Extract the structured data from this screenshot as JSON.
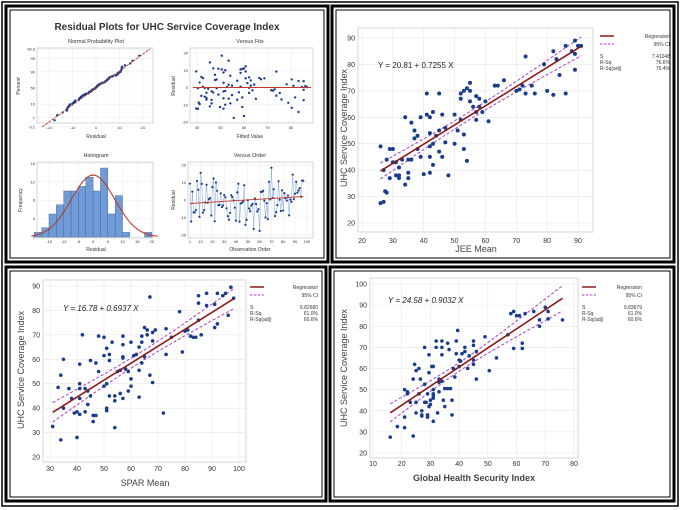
{
  "colors": {
    "points": "#1a3c8c",
    "regression": "#8b1a1a",
    "ci": "#b23cc8",
    "hist_bar": "#6f9bd6",
    "fit_line": "#c0392b",
    "grid": "#e6e6e6"
  },
  "residual_plots": {
    "title": "Residual Plots for UHC Service Coverage Index",
    "normal_probability": {
      "title": "Normal Probability Plot",
      "xlabel": "Residual",
      "ylabel": "Percent",
      "xticks": [
        -20,
        -10,
        0,
        10,
        20
      ],
      "yticks": [
        "0.1",
        "1",
        "10",
        "50",
        "90",
        "99",
        "99.9"
      ]
    },
    "versus_fits": {
      "title": "Versus Fits",
      "xlabel": "Fitted Value",
      "ylabel": "Residual",
      "xticks": [
        40,
        50,
        60,
        70,
        80
      ],
      "yticks": [
        -20,
        -10,
        0,
        10,
        20
      ]
    },
    "histogram": {
      "title": "Histogram",
      "xlabel": "Residual",
      "ylabel": "Frequency",
      "xticks": [
        -15,
        -10,
        -5,
        0,
        5,
        10,
        15,
        20
      ],
      "yticks": [
        0,
        4,
        8,
        12,
        16
      ],
      "bin_start": -20,
      "bin_width": 2.5,
      "frequencies": [
        1,
        2,
        5,
        7,
        10,
        10,
        11,
        13,
        10,
        15,
        5,
        9,
        1,
        0,
        0,
        1
      ]
    },
    "versus_order": {
      "title": "Versus Order",
      "xlabel": "Observation Order",
      "ylabel": "Residual",
      "xticks": [
        1,
        10,
        20,
        30,
        40,
        50,
        60,
        70,
        80,
        90,
        100
      ],
      "yticks": [
        -20,
        -10,
        0,
        10,
        20
      ]
    }
  },
  "chart_data": [
    {
      "type": "scatter",
      "xlabel": "JEE Mean",
      "ylabel": "UHC Service Coverage Index",
      "xlim": [
        20,
        90
      ],
      "ylim": [
        20,
        90
      ],
      "xticks": [
        20,
        30,
        40,
        50,
        60,
        70,
        80,
        90
      ],
      "yticks": [
        20,
        30,
        40,
        50,
        60,
        70,
        80,
        90
      ],
      "equation": "Y = 20.81 + 0.7255 X",
      "intercept": 20.81,
      "slope": 0.7255,
      "legend": {
        "regression": "Regression",
        "ci": "95% CI",
        "stats": [
          [
            "S",
            "7.41048"
          ],
          [
            "R-Sq",
            "76.6%"
          ],
          [
            "R-Sq(adj)",
            "76.4%"
          ]
        ]
      },
      "points": [
        [
          26,
          49
        ],
        [
          26,
          27.5
        ],
        [
          27,
          28
        ],
        [
          27,
          40
        ],
        [
          27.5,
          32
        ],
        [
          28,
          31.5
        ],
        [
          28,
          44
        ],
        [
          29,
          37
        ],
        [
          29,
          48
        ],
        [
          30,
          48
        ],
        [
          30,
          43
        ],
        [
          31,
          43
        ],
        [
          31,
          38
        ],
        [
          32,
          38
        ],
        [
          32,
          37
        ],
        [
          32,
          41
        ],
        [
          33,
          44
        ],
        [
          34,
          34.5
        ],
        [
          34,
          60
        ],
        [
          35,
          39
        ],
        [
          35,
          37
        ],
        [
          35,
          44
        ],
        [
          36,
          44
        ],
        [
          36,
          58
        ],
        [
          37,
          55
        ],
        [
          37,
          52
        ],
        [
          38,
          53
        ],
        [
          38,
          48
        ],
        [
          39,
          60
        ],
        [
          39,
          45
        ],
        [
          40,
          38.5
        ],
        [
          41,
          69
        ],
        [
          41,
          61
        ],
        [
          42,
          60
        ],
        [
          42,
          54
        ],
        [
          42,
          49
        ],
        [
          42,
          45
        ],
        [
          42,
          39
        ],
        [
          43,
          62
        ],
        [
          43,
          50
        ],
        [
          43,
          42
        ],
        [
          44,
          53
        ],
        [
          45,
          69
        ],
        [
          45,
          55
        ],
        [
          45,
          47
        ],
        [
          46,
          45
        ],
        [
          46,
          61
        ],
        [
          47,
          56
        ],
        [
          47,
          50.5
        ],
        [
          48,
          38
        ],
        [
          50,
          61
        ],
        [
          50,
          50
        ],
        [
          51,
          55
        ],
        [
          52,
          67
        ],
        [
          52,
          69
        ],
        [
          52,
          59
        ],
        [
          53,
          53.5
        ],
        [
          53,
          48
        ],
        [
          54,
          43.5
        ],
        [
          53,
          70
        ],
        [
          54,
          71
        ],
        [
          55,
          73
        ],
        [
          55,
          70
        ],
        [
          55,
          66
        ],
        [
          56,
          64
        ],
        [
          57,
          68
        ],
        [
          57,
          59
        ],
        [
          57,
          62
        ],
        [
          58,
          64
        ],
        [
          58,
          67
        ],
        [
          59,
          62
        ],
        [
          60,
          66
        ],
        [
          61,
          58.5
        ],
        [
          63,
          72
        ],
        [
          64,
          72
        ],
        [
          66,
          74
        ],
        [
          70,
          70
        ],
        [
          71,
          70.5
        ],
        [
          72,
          72
        ],
        [
          73,
          83
        ],
        [
          73,
          69
        ],
        [
          75,
          72
        ],
        [
          76,
          69
        ],
        [
          79,
          80
        ],
        [
          80,
          70
        ],
        [
          82,
          68.5
        ],
        [
          82,
          85
        ],
        [
          83,
          82
        ],
        [
          84,
          76
        ],
        [
          86,
          87
        ],
        [
          86,
          69
        ],
        [
          88,
          85
        ],
        [
          89,
          89
        ],
        [
          89,
          84
        ],
        [
          89,
          78
        ],
        [
          90,
          87
        ],
        [
          91,
          87
        ]
      ]
    },
    {
      "type": "scatter",
      "xlabel": "SPAR Mean",
      "ylabel": "UHC Service Coverage Index",
      "xlim": [
        30,
        100
      ],
      "ylim": [
        20,
        90
      ],
      "xticks": [
        30,
        40,
        50,
        60,
        70,
        80,
        90,
        100
      ],
      "yticks": [
        20,
        30,
        40,
        50,
        60,
        70,
        80,
        90
      ],
      "equation": "Y = 16.78 + 0.6937 X",
      "intercept": 16.78,
      "slope": 0.6937,
      "legend": {
        "regression": "Regression",
        "ci": "95% CI",
        "stats": [
          [
            "S",
            "9.82680"
          ],
          [
            "R-Sq",
            "61.0%"
          ],
          [
            "R-Sq(adj)",
            "60.6%"
          ]
        ]
      },
      "points": [
        [
          31,
          32.5
        ],
        [
          33,
          48.5
        ],
        [
          34,
          27
        ],
        [
          34,
          53.5
        ],
        [
          35,
          40
        ],
        [
          35,
          60
        ],
        [
          37,
          48
        ],
        [
          38,
          44
        ],
        [
          39,
          38
        ],
        [
          40,
          38.5
        ],
        [
          40,
          28
        ],
        [
          41,
          58
        ],
        [
          41,
          50
        ],
        [
          41,
          48
        ],
        [
          41,
          44
        ],
        [
          41,
          37.5
        ],
        [
          42,
          70
        ],
        [
          43,
          38.5
        ],
        [
          43,
          48
        ],
        [
          44,
          47
        ],
        [
          44,
          41.5
        ],
        [
          45,
          59.5
        ],
        [
          45,
          45
        ],
        [
          46,
          37
        ],
        [
          46,
          34.5
        ],
        [
          47,
          58.5
        ],
        [
          47,
          37
        ],
        [
          48,
          69.5
        ],
        [
          48,
          55
        ],
        [
          50,
          61.5
        ],
        [
          50,
          49
        ],
        [
          50,
          69
        ],
        [
          51,
          64.5
        ],
        [
          51,
          50
        ],
        [
          51,
          40
        ],
        [
          51,
          39
        ],
        [
          52,
          62
        ],
        [
          52,
          59.5
        ],
        [
          52,
          45
        ],
        [
          53,
          67
        ],
        [
          54,
          45
        ],
        [
          54,
          43
        ],
        [
          54,
          32
        ],
        [
          55,
          55
        ],
        [
          56,
          46
        ],
        [
          56,
          55.5
        ],
        [
          57,
          69.5
        ],
        [
          57,
          66
        ],
        [
          57,
          61
        ],
        [
          57,
          60.5
        ],
        [
          57,
          44
        ],
        [
          58,
          56
        ],
        [
          59,
          47
        ],
        [
          59,
          55
        ],
        [
          60,
          67
        ],
        [
          60,
          52
        ],
        [
          60,
          49
        ],
        [
          61,
          61.5
        ],
        [
          62,
          62
        ],
        [
          63,
          44.5
        ],
        [
          63,
          55.5
        ],
        [
          63,
          65
        ],
        [
          64,
          69.5
        ],
        [
          64,
          67
        ],
        [
          64,
          58.5
        ],
        [
          65,
          73
        ],
        [
          65,
          61
        ],
        [
          66,
          72
        ],
        [
          66,
          70
        ],
        [
          67,
          53.5
        ],
        [
          67,
          85.5
        ],
        [
          68,
          71
        ],
        [
          68,
          67.5
        ],
        [
          68,
          50.5
        ],
        [
          69,
          72
        ],
        [
          72,
          38
        ],
        [
          73,
          72.5
        ],
        [
          73,
          62
        ],
        [
          75,
          69
        ],
        [
          78,
          79.5
        ],
        [
          79,
          63
        ],
        [
          80,
          71.5
        ],
        [
          81,
          72
        ],
        [
          82,
          69.5
        ],
        [
          83,
          69
        ],
        [
          84,
          69
        ],
        [
          85,
          86
        ],
        [
          85,
          83
        ],
        [
          85,
          76
        ],
        [
          86,
          70
        ],
        [
          88,
          87
        ],
        [
          88,
          82
        ],
        [
          91,
          82.5
        ],
        [
          91,
          73
        ],
        [
          92,
          87
        ],
        [
          92,
          74.5
        ],
        [
          94,
          86
        ],
        [
          95,
          87
        ],
        [
          96,
          78
        ],
        [
          97,
          89.5
        ],
        [
          98,
          85
        ]
      ]
    },
    {
      "type": "scatter",
      "xlabel": "Global Health Security Index",
      "ylabel": "UHC Service Coverage Index",
      "xlim": [
        10,
        80
      ],
      "ylim": [
        20,
        100
      ],
      "xticks": [
        10,
        20,
        30,
        40,
        50,
        60,
        70,
        80
      ],
      "yticks": [
        20,
        30,
        40,
        50,
        60,
        70,
        80,
        90,
        100
      ],
      "equation": "Y = 24.58 + 0.9032 X",
      "intercept": 24.58,
      "slope": 0.9032,
      "legend": {
        "regression": "Regression",
        "ci": "95% CI",
        "stats": [
          [
            "S",
            "9.83679"
          ],
          [
            "R-Sq",
            "61.0%"
          ],
          [
            "R-Sq(adj)",
            "60.6%"
          ]
        ]
      },
      "points": [
        [
          16,
          27.5
        ],
        [
          18.5,
          32.5
        ],
        [
          21,
          32
        ],
        [
          21,
          37
        ],
        [
          21,
          50
        ],
        [
          22,
          48
        ],
        [
          22,
          49
        ],
        [
          23,
          44
        ],
        [
          24,
          28
        ],
        [
          24,
          55
        ],
        [
          24.5,
          62
        ],
        [
          25,
          59
        ],
        [
          25,
          44
        ],
        [
          25,
          39
        ],
        [
          26,
          48
        ],
        [
          26,
          60
        ],
        [
          26.5,
          55
        ],
        [
          27,
          40
        ],
        [
          27,
          38
        ],
        [
          27,
          37.5
        ],
        [
          28,
          70
        ],
        [
          28,
          52.5
        ],
        [
          28,
          44
        ],
        [
          28.5,
          44
        ],
        [
          29,
          48
        ],
        [
          29,
          38
        ],
        [
          29,
          37
        ],
        [
          29.5,
          42
        ],
        [
          29.5,
          58
        ],
        [
          29.5,
          66.5
        ],
        [
          30,
          45
        ],
        [
          30,
          43
        ],
        [
          30.5,
          61
        ],
        [
          31,
          61
        ],
        [
          31,
          50
        ],
        [
          31,
          48
        ],
        [
          31,
          47
        ],
        [
          31,
          46
        ],
        [
          31,
          35
        ],
        [
          32,
          70
        ],
        [
          32,
          73
        ],
        [
          32.5,
          39
        ],
        [
          33,
          55
        ],
        [
          33,
          49
        ],
        [
          33,
          53.5
        ],
        [
          34,
          73
        ],
        [
          34,
          70
        ],
        [
          34,
          66.5
        ],
        [
          34,
          54
        ],
        [
          34.5,
          45
        ],
        [
          35,
          50.5
        ],
        [
          35,
          42
        ],
        [
          36,
          50.5
        ],
        [
          36,
          72
        ],
        [
          36.5,
          69
        ],
        [
          37,
          50.5
        ],
        [
          37.5,
          38
        ],
        [
          37.5,
          45
        ],
        [
          38,
          60
        ],
        [
          38.5,
          56
        ],
        [
          39,
          73
        ],
        [
          39,
          67
        ],
        [
          39.5,
          78
        ],
        [
          40,
          64
        ],
        [
          40,
          61
        ],
        [
          40.5,
          63.5
        ],
        [
          41,
          67
        ],
        [
          42,
          70
        ],
        [
          42,
          68
        ],
        [
          43,
          60
        ],
        [
          43.5,
          66
        ],
        [
          45,
          73
        ],
        [
          45,
          71
        ],
        [
          45,
          62
        ],
        [
          45,
          64
        ],
        [
          46,
          55
        ],
        [
          46,
          68
        ],
        [
          49,
          75
        ],
        [
          50.5,
          59
        ],
        [
          53,
          65
        ],
        [
          57,
          76
        ],
        [
          58,
          86
        ],
        [
          59,
          87
        ],
        [
          59,
          69.5
        ],
        [
          60,
          85
        ],
        [
          61,
          85
        ],
        [
          62,
          72
        ],
        [
          62,
          69.5
        ],
        [
          63,
          86
        ],
        [
          66,
          87
        ],
        [
          68,
          80
        ],
        [
          68,
          83
        ],
        [
          70,
          89
        ],
        [
          71,
          87
        ],
        [
          71,
          83.5
        ],
        [
          76,
          83
        ]
      ]
    }
  ]
}
